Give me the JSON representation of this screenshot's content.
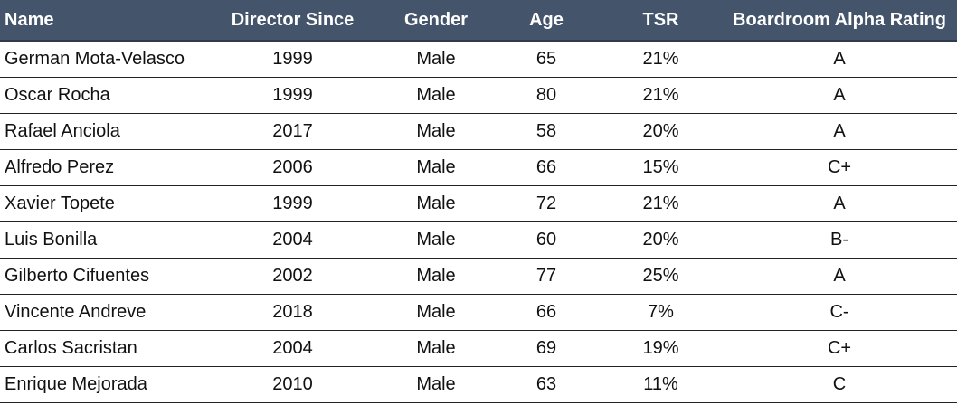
{
  "chart_data": {
    "type": "table",
    "columns": [
      "Name",
      "Director Since",
      "Gender",
      "Age",
      "TSR",
      "Boardroom Alpha Rating"
    ],
    "rows": [
      [
        "German Mota-Velasco",
        "1999",
        "Male",
        "65",
        "21%",
        "A"
      ],
      [
        "Oscar Rocha",
        "1999",
        "Male",
        "80",
        "21%",
        "A"
      ],
      [
        "Rafael Anciola",
        "2017",
        "Male",
        "58",
        "20%",
        "A"
      ],
      [
        "Alfredo Perez",
        "2006",
        "Male",
        "66",
        "15%",
        "C+"
      ],
      [
        "Xavier Topete",
        "1999",
        "Male",
        "72",
        "21%",
        "A"
      ],
      [
        "Luis Bonilla",
        "2004",
        "Male",
        "60",
        "20%",
        "B-"
      ],
      [
        "Gilberto Cifuentes",
        "2002",
        "Male",
        "77",
        "25%",
        "A"
      ],
      [
        "Vincente Andreve",
        "2018",
        "Male",
        "66",
        "7%",
        "C-"
      ],
      [
        "Carlos Sacristan",
        "2004",
        "Male",
        "69",
        "19%",
        "C+"
      ],
      [
        "Enrique Mejorada",
        "2010",
        "Male",
        "63",
        "11%",
        "C"
      ]
    ]
  },
  "colors": {
    "header_background": "#44546a",
    "header_text": "#ffffff",
    "row_divider": "#222222"
  }
}
